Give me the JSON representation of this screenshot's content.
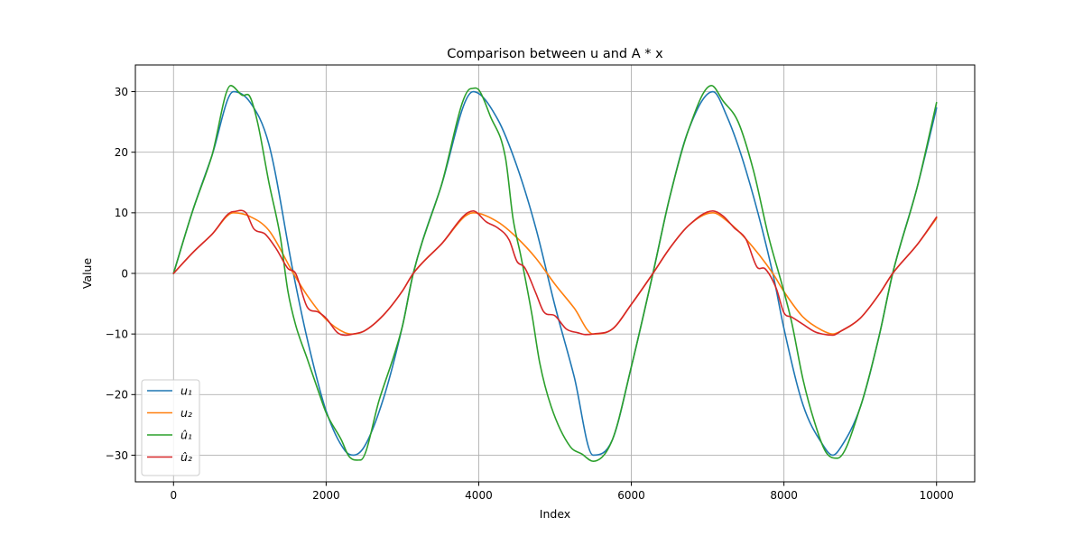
{
  "chart_data": {
    "type": "line",
    "title": "Comparison between u and A * x",
    "xlabel": "Index",
    "ylabel": "Value",
    "xlim": [
      -500,
      10500
    ],
    "ylim": [
      -34.4,
      34.4
    ],
    "xticks": [
      0,
      2000,
      4000,
      6000,
      8000,
      10000
    ],
    "xtick_labels": [
      "0",
      "2000",
      "4000",
      "6000",
      "8000",
      "10000"
    ],
    "yticks": [
      -30,
      -20,
      -10,
      0,
      10,
      20,
      30
    ],
    "ytick_labels": [
      "−30",
      "−20",
      "−10",
      "0",
      "10",
      "20",
      "30"
    ],
    "grid": true,
    "legend_position": "lower-left",
    "series": [
      {
        "name": "u₁",
        "color": "#1f77b4",
        "x": [
          0,
          250,
          500,
          785,
          1000,
          1250,
          1571,
          1750,
          2000,
          2250,
          2356,
          2500,
          2750,
          3000,
          3142,
          3500,
          3927,
          4250,
          4500,
          4750,
          5000,
          5250,
          5498,
          5750,
          6000,
          6283,
          6500,
          6750,
          7069,
          7250,
          7500,
          7854,
          8000,
          8250,
          8500,
          8640,
          8750,
          9000,
          9250,
          9425,
          9750,
          10000
        ],
        "y": [
          0,
          10.3,
          19.3,
          30,
          28.3,
          21.3,
          0,
          -10.7,
          -22.7,
          -29.3,
          -30,
          -28.6,
          -20.7,
          -8.7,
          0,
          14.1,
          30,
          25.4,
          17.7,
          7.4,
          -5.4,
          -17.0,
          -30,
          -27.5,
          -15.4,
          0,
          12.4,
          23.7,
          30,
          26.0,
          17.1,
          0,
          -9.1,
          -21.7,
          -28.1,
          -30,
          -28.6,
          -22.1,
          -10.2,
          0,
          14.4,
          27.3
        ]
      },
      {
        "name": "u₂",
        "color": "#ff7f0e",
        "x": [
          0,
          250,
          500,
          785,
          1000,
          1250,
          1571,
          1750,
          2000,
          2250,
          2356,
          2500,
          2750,
          3000,
          3142,
          3500,
          3927,
          4250,
          4500,
          4750,
          5000,
          5250,
          5498,
          5750,
          6000,
          6283,
          6500,
          6750,
          7069,
          7250,
          7500,
          7854,
          8000,
          8250,
          8500,
          8640,
          8750,
          9000,
          9250,
          9425,
          9750,
          10000
        ],
        "y": [
          0,
          3.4,
          6.4,
          10,
          9.4,
          7.1,
          0,
          -3.6,
          -7.6,
          -9.8,
          -10,
          -9.5,
          -6.9,
          -2.9,
          0,
          4.7,
          10,
          8.5,
          5.9,
          2.5,
          -1.8,
          -5.7,
          -10,
          -9.2,
          -5.1,
          0,
          4.1,
          7.9,
          10,
          8.7,
          5.7,
          0,
          -3.0,
          -7.2,
          -9.4,
          -10,
          -9.5,
          -7.4,
          -3.4,
          0,
          4.8,
          9.1
        ]
      },
      {
        "name": "û₁",
        "color": "#2ca02c",
        "x": [
          0,
          250,
          500,
          750,
          900,
          1000,
          1100,
          1250,
          1400,
          1500,
          1600,
          1750,
          1900,
          2000,
          2200,
          2300,
          2450,
          2700,
          3000,
          3142,
          3500,
          3900,
          4000,
          4150,
          4350,
          4450,
          4550,
          4700,
          4800,
          4950,
          5200,
          5350,
          5500,
          5750,
          6000,
          6283,
          6500,
          6750,
          7050,
          7200,
          7400,
          7600,
          7800,
          8000,
          8100,
          8250,
          8400,
          8550,
          8700,
          9000,
          9250,
          9425,
          9750,
          10000
        ],
        "y": [
          0,
          10.3,
          19.3,
          31,
          29.4,
          29.2,
          25,
          15,
          6,
          -3,
          -8.5,
          -14,
          -19.5,
          -23,
          -27.5,
          -30.2,
          -30.8,
          -20.7,
          -8.7,
          0,
          14.1,
          30.5,
          30.3,
          26,
          19.1,
          9,
          3,
          -7,
          -14.8,
          -22,
          -28.6,
          -29.8,
          -31,
          -27.5,
          -15.4,
          0,
          12.4,
          23.7,
          31,
          28.5,
          25,
          17,
          6,
          -3,
          -8,
          -17.5,
          -24.5,
          -29.5,
          -30.5,
          -22.1,
          -10.2,
          0,
          14.4,
          28.2
        ]
      },
      {
        "name": "û₂",
        "color": "#d62728",
        "x": [
          0,
          250,
          500,
          785,
          950,
          1050,
          1200,
          1350,
          1500,
          1600,
          1750,
          1900,
          2000,
          2150,
          2250,
          2356,
          2500,
          2750,
          3000,
          3142,
          3500,
          3927,
          4100,
          4250,
          4400,
          4500,
          4600,
          4750,
          4850,
          5000,
          5150,
          5300,
          5400,
          5498,
          5750,
          6000,
          6283,
          6500,
          6750,
          7069,
          7200,
          7350,
          7500,
          7650,
          7750,
          7900,
          8000,
          8100,
          8250,
          8400,
          8500,
          8640,
          8750,
          9000,
          9250,
          9425,
          9750,
          10000
        ],
        "y": [
          0,
          3.4,
          6.4,
          10.2,
          10,
          7.4,
          6.5,
          4,
          0.8,
          0,
          -5.5,
          -6.4,
          -7.4,
          -9.8,
          -10.2,
          -10,
          -9.5,
          -6.9,
          -2.9,
          0,
          4.7,
          10.3,
          8.5,
          7.5,
          5.5,
          2,
          1,
          -3.3,
          -6.3,
          -7,
          -9.2,
          -9.8,
          -10.1,
          -10,
          -9.2,
          -5.1,
          0,
          4.1,
          7.9,
          10.3,
          9.5,
          7.5,
          5.7,
          1,
          0.8,
          -2.5,
          -6.5,
          -7.2,
          -8.4,
          -9.6,
          -10,
          -10.2,
          -9.5,
          -7.4,
          -3.4,
          0,
          4.8,
          9.3
        ]
      }
    ]
  }
}
